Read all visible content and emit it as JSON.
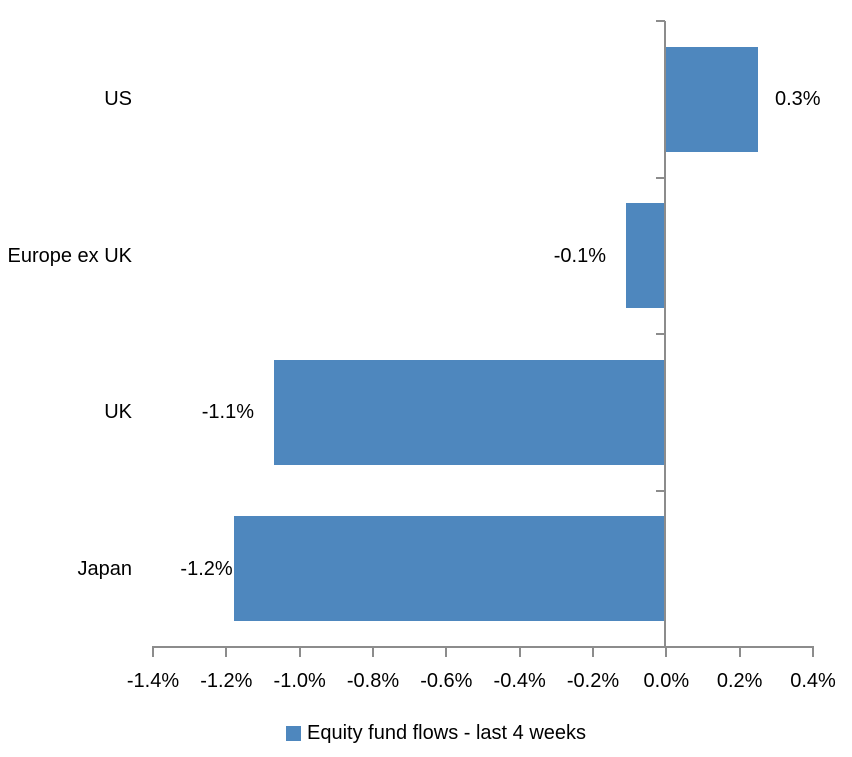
{
  "chart_data": {
    "type": "bar",
    "orientation": "horizontal",
    "categories": [
      "US",
      "Europe ex UK",
      "UK",
      "Japan"
    ],
    "series": [
      {
        "name": "Equity fund flows - last 4 weeks",
        "values": [
          0.25,
          -0.11,
          -1.07,
          -1.18
        ],
        "data_labels": [
          "0.3%",
          "-0.1%",
          "-1.1%",
          "-1.2%"
        ]
      }
    ],
    "units": "percent",
    "xlim": [
      -1.4,
      0.4
    ],
    "x_tick_step": 0.2,
    "x_tick_labels": [
      "-1.4%",
      "-1.2%",
      "-1.0%",
      "-0.8%",
      "-0.6%",
      "-0.4%",
      "-0.2%",
      "0.0%",
      "0.2%",
      "0.4%"
    ],
    "grid": "off",
    "legend_position": "bottom",
    "legend": {
      "label": "Equity fund flows - last 4 weeks",
      "swatch_color": "#4E87BE"
    },
    "colors": {
      "bar": "#4E87BE",
      "axis": "#8C8C8C",
      "text": "#000000",
      "background": "#FFFFFF"
    }
  }
}
